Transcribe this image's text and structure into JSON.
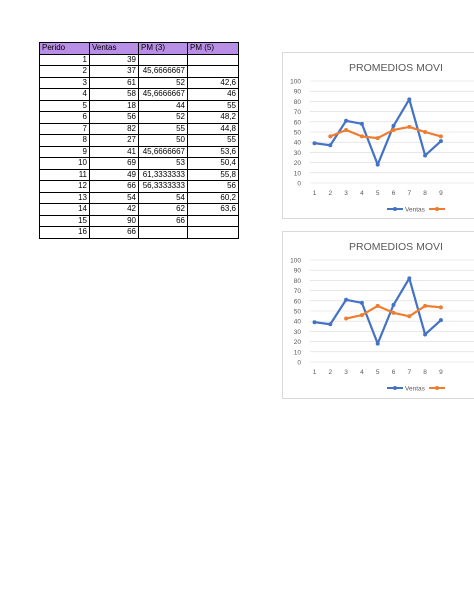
{
  "table": {
    "headers": [
      "Perido",
      "Ventas",
      "PM (3)",
      "PM (5)"
    ],
    "rows": [
      [
        "1",
        "39",
        "",
        ""
      ],
      [
        "2",
        "37",
        "45,6666667",
        ""
      ],
      [
        "3",
        "61",
        "52",
        "42,6"
      ],
      [
        "4",
        "58",
        "45,6666667",
        "46"
      ],
      [
        "5",
        "18",
        "44",
        "55"
      ],
      [
        "6",
        "56",
        "52",
        "48,2"
      ],
      [
        "7",
        "82",
        "55",
        "44,8"
      ],
      [
        "8",
        "27",
        "50",
        "55"
      ],
      [
        "9",
        "41",
        "45,6666667",
        "53,6"
      ],
      [
        "10",
        "69",
        "53",
        "50,4"
      ],
      [
        "11",
        "49",
        "61,3333333",
        "55,8"
      ],
      [
        "12",
        "66",
        "56,3333333",
        "56"
      ],
      [
        "13",
        "54",
        "54",
        "60,2"
      ],
      [
        "14",
        "42",
        "62",
        "63,6"
      ],
      [
        "15",
        "90",
        "66",
        ""
      ],
      [
        "16",
        "66",
        "",
        ""
      ]
    ]
  },
  "colors": {
    "ventas": "#4472c4",
    "promedio": "#ed7d31",
    "header_bg": "#b98ee6",
    "grid": "#d9d9d9"
  },
  "chart_data": [
    {
      "type": "line",
      "title": "PROMEDIOS MOVI",
      "categories": [
        1,
        2,
        3,
        4,
        5,
        6,
        7,
        8,
        9
      ],
      "ylim": [
        0,
        100
      ],
      "yticks": [
        0,
        10,
        20,
        30,
        40,
        50,
        60,
        70,
        80,
        90,
        100
      ],
      "grid": true,
      "legend": "bottom",
      "series": [
        {
          "name": "Ventas",
          "values": [
            39,
            37,
            61,
            58,
            18,
            56,
            82,
            27,
            41
          ]
        },
        {
          "name": "",
          "values": [
            null,
            45.67,
            52,
            45.67,
            44,
            52,
            55,
            50,
            45.67
          ]
        }
      ]
    },
    {
      "type": "line",
      "title": "PROMEDIOS MOVI",
      "categories": [
        1,
        2,
        3,
        4,
        5,
        6,
        7,
        8,
        9
      ],
      "ylim": [
        0,
        100
      ],
      "yticks": [
        0,
        10,
        20,
        30,
        40,
        50,
        60,
        70,
        80,
        90,
        100
      ],
      "grid": true,
      "legend": "bottom",
      "series": [
        {
          "name": "Ventas",
          "values": [
            39,
            37,
            61,
            58,
            18,
            56,
            82,
            27,
            41
          ]
        },
        {
          "name": "",
          "values": [
            null,
            null,
            42.6,
            46,
            55,
            48.2,
            44.8,
            55,
            53.6
          ]
        }
      ]
    }
  ]
}
